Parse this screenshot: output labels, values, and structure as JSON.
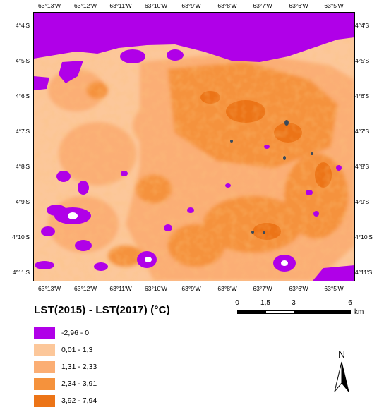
{
  "map": {
    "longitude_ticks": [
      "63°13'W",
      "63°12'W",
      "63°11'W",
      "63°10'W",
      "63°9'W",
      "63°8'W",
      "63°7'W",
      "63°6'W",
      "63°5'W"
    ],
    "latitude_ticks": [
      "4°4'S",
      "4°5'S",
      "4°6'S",
      "4°7'S",
      "4°8'S",
      "4°9'S",
      "4°10'S",
      "4°11'S"
    ]
  },
  "legend": {
    "title": "LST(2015) - LST(2017) (°C)",
    "items": [
      {
        "label": "-2,96 - 0",
        "color": "#b000e8"
      },
      {
        "label": "0,01 - 1,3",
        "color": "#fcc79a"
      },
      {
        "label": "1,31 - 2,33",
        "color": "#fbae74"
      },
      {
        "label": "2,34 - 3,91",
        "color": "#f5923c"
      },
      {
        "label": "3,92 - 7,94",
        "color": "#ec7417"
      }
    ]
  },
  "scale_bar": {
    "labels": [
      "0",
      "1,5",
      "3",
      "6"
    ],
    "unit": "km"
  },
  "north_arrow": {
    "label": "N"
  }
}
